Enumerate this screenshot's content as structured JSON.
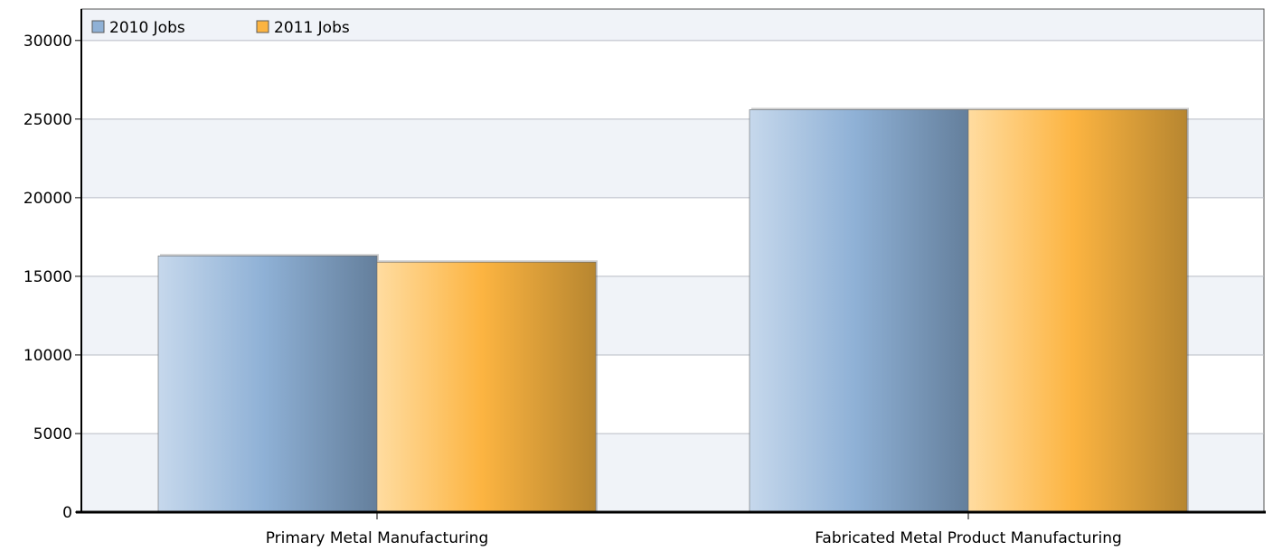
{
  "chart_data": {
    "type": "bar",
    "categories": [
      "Primary Metal Manufacturing",
      "Fabricated Metal Product Manufacturing"
    ],
    "series": [
      {
        "name": "2010 Jobs",
        "values": [
          16300,
          25600
        ],
        "color": "#8fb1d6"
      },
      {
        "name": "2011 Jobs",
        "values": [
          15900,
          25600
        ],
        "color": "#fcb441"
      }
    ],
    "yticks": [
      "0",
      "5000",
      "10000",
      "15000",
      "20000",
      "25000",
      "30000"
    ],
    "ylim": [
      0,
      32000
    ],
    "grid": true,
    "legend_placement": "top-left",
    "band_colors": [
      "#f0f3f8",
      "#ffffff"
    ]
  }
}
